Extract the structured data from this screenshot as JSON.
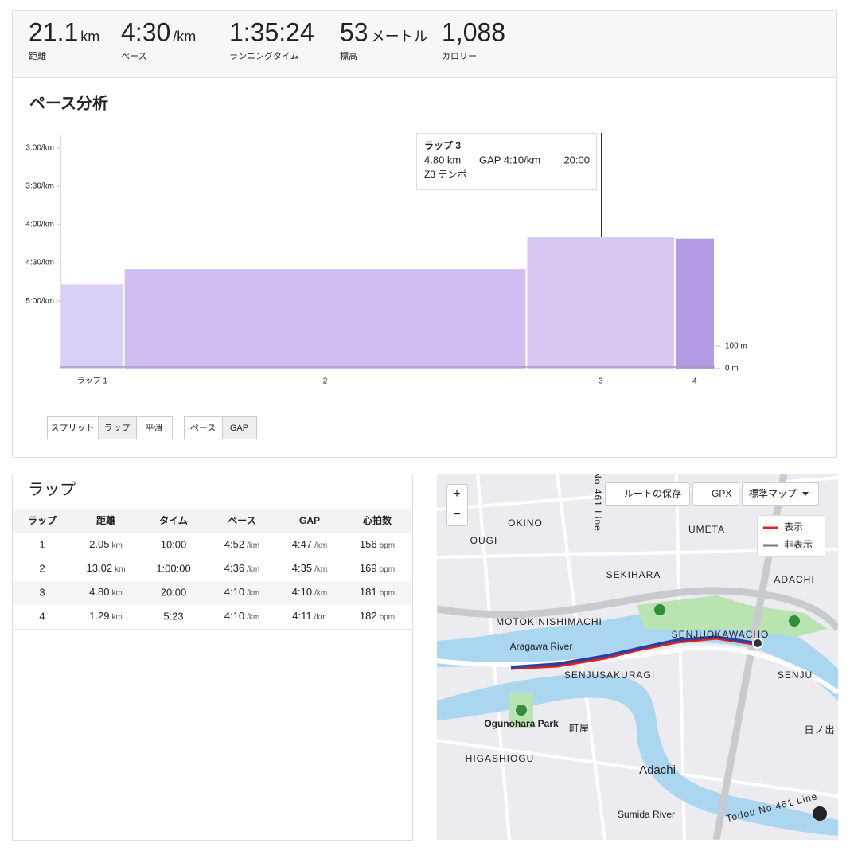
{
  "stats": [
    {
      "value": "21.1",
      "unit": "km",
      "label": "距離"
    },
    {
      "value": "4:30",
      "unit": "/km",
      "label": "ペース"
    },
    {
      "value": "1:35:24",
      "label": "ランニングタイム"
    },
    {
      "value": "53",
      "unit": "メートル",
      "label": "標高"
    },
    {
      "value": "1,088",
      "label": "カロリー"
    }
  ],
  "chart_data": {
    "type": "bar",
    "title": "ペース分析",
    "categories": [
      "ラップ 1",
      "2",
      "3",
      "4"
    ],
    "widths": [
      2.05,
      13.02,
      4.8,
      1.29
    ],
    "values": [
      287,
      275,
      250,
      251
    ],
    "colors": [
      "#dccff5",
      "#cfbff0",
      "#d7c8f3",
      "#b39ce5"
    ],
    "ylim": [
      353,
      170
    ],
    "yticks": [
      {
        "value": 180,
        "label": "3:00/km"
      },
      {
        "value": 210,
        "label": "3:30/km"
      },
      {
        "value": 240,
        "label": "4:00/km"
      },
      {
        "value": 270,
        "label": "4:30/km"
      },
      {
        "value": 300,
        "label": "5:00/km"
      }
    ],
    "y2lim": [
      0,
      1046
    ],
    "y2ticks": [
      {
        "value": 100,
        "label": "100 m"
      },
      {
        "value": 0,
        "label": "0 m"
      }
    ],
    "tooltip": {
      "title": "ラップ 3",
      "distance": "4.80 km",
      "gap": "GAP 4:10/km",
      "time": "20:00",
      "zone": "Z3 テンポ"
    }
  },
  "controls": {
    "view": [
      "スプリット",
      "ラップ",
      "平滑"
    ],
    "metric": [
      "ペース",
      "GAP"
    ]
  },
  "laps": {
    "title": "ラップ",
    "headers": [
      "ラップ",
      "距離",
      "タイム",
      "ペース",
      "GAP",
      "心拍数"
    ],
    "rows": [
      [
        "1",
        {
          "v": "2.05",
          "u": "km"
        },
        "10:00",
        {
          "v": "4:52",
          "u": "/km"
        },
        {
          "v": "4:47",
          "u": "/km"
        },
        {
          "v": "156",
          "u": "bpm"
        }
      ],
      [
        "2",
        {
          "v": "13.02",
          "u": "km"
        },
        "1:00:00",
        {
          "v": "4:36",
          "u": "/km"
        },
        {
          "v": "4:35",
          "u": "/km"
        },
        {
          "v": "169",
          "u": "bpm"
        }
      ],
      [
        "3",
        {
          "v": "4.80",
          "u": "km"
        },
        "20:00",
        {
          "v": "4:10",
          "u": "/km"
        },
        {
          "v": "4:10",
          "u": "/km"
        },
        {
          "v": "181",
          "u": "bpm"
        }
      ],
      [
        "4",
        {
          "v": "1.29",
          "u": "km"
        },
        "5:23",
        {
          "v": "4:10",
          "u": "/km"
        },
        {
          "v": "4:11",
          "u": "/km"
        },
        {
          "v": "182",
          "u": "bpm"
        }
      ]
    ]
  },
  "map": {
    "zoom_in": "+",
    "zoom_out": "−",
    "save_route": "ルートの保存",
    "gpx": "GPX",
    "map_type": "標準マップ",
    "legend": [
      "表示",
      "非表示"
    ],
    "labels": [
      "OKINO",
      "UMETA",
      "OUGI",
      "SEKIHARA",
      "ADACHI",
      "MOTOKINISHIMACHI",
      "SENJUOKAWACHO",
      "Aragawa River",
      "SENJUSAKURAGI",
      "SENJU",
      "Ogunohara Park",
      "町屋",
      "HIGASHIOGU",
      "Adachi",
      "Sumida River",
      "Todou No.461 Line",
      "No.461 Line",
      "日ノ出"
    ]
  }
}
